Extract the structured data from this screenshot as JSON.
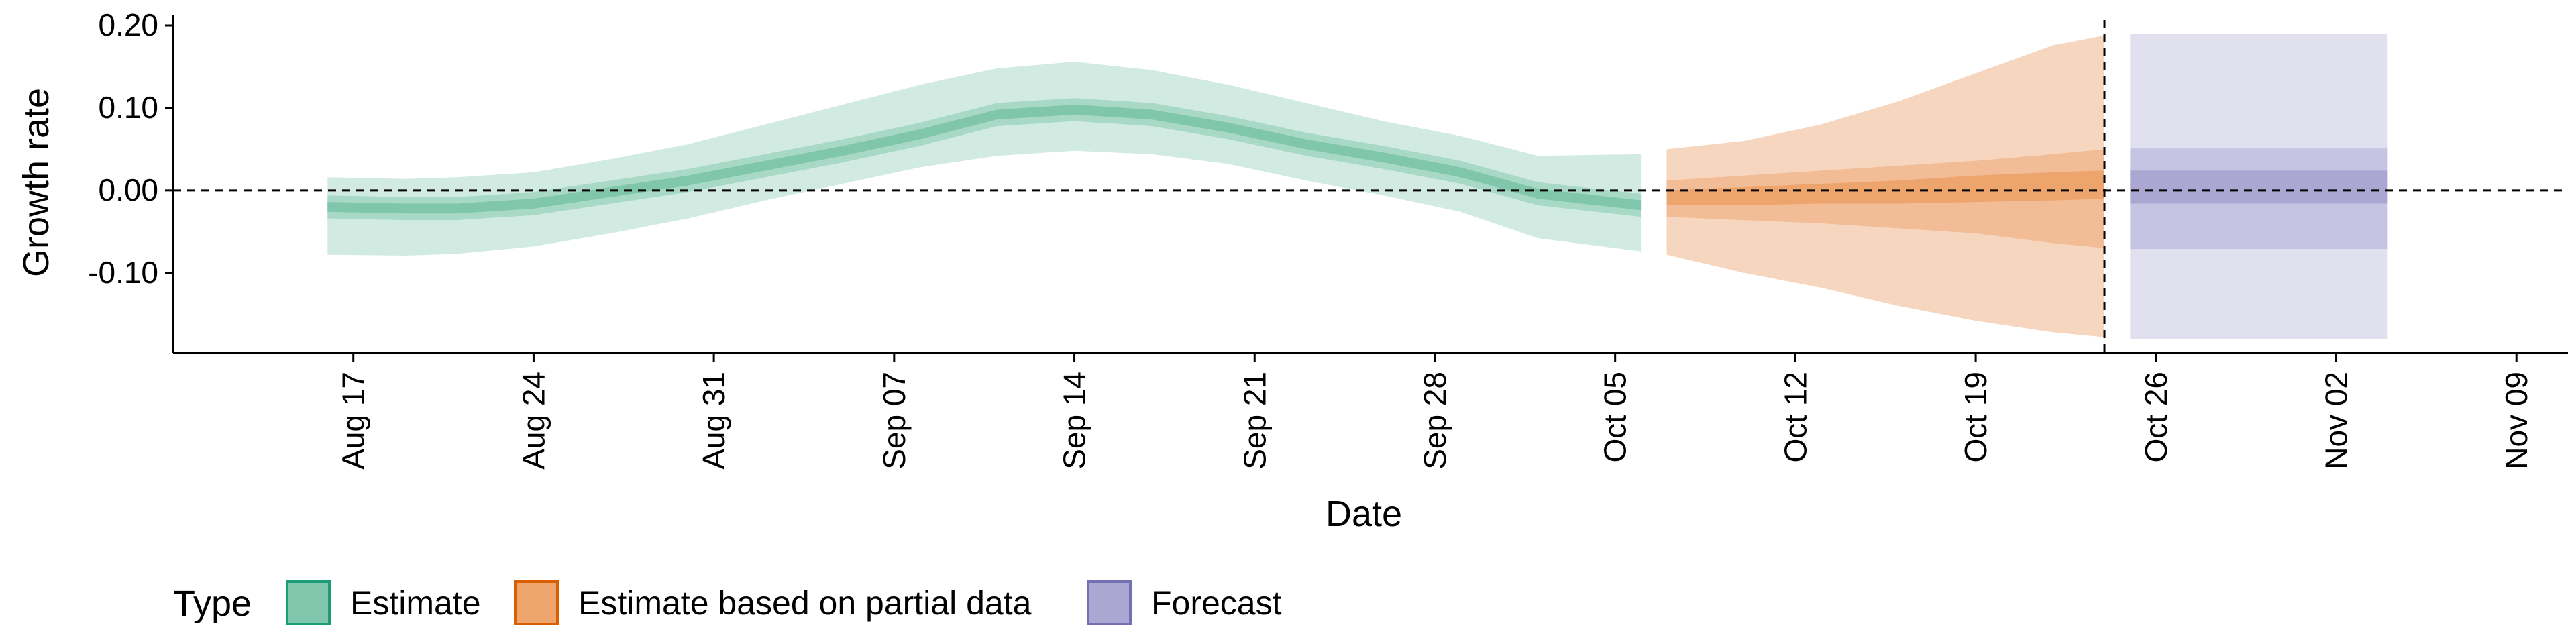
{
  "chart_data": {
    "type": "area",
    "xlabel": "Date",
    "ylabel": "Growth rate",
    "x_ticks": [
      "Aug 17",
      "Aug 24",
      "Aug 31",
      "Sep 07",
      "Sep 14",
      "Sep 21",
      "Sep 28",
      "Oct 05",
      "Oct 12",
      "Oct 19",
      "Oct 26",
      "Nov 02",
      "Nov 09"
    ],
    "y_ticks": [
      "0.20",
      "0.10",
      "0.00",
      "-0.10"
    ],
    "xlim": [
      "2020-08-10",
      "2020-11-11"
    ],
    "ylim": [
      -0.197,
      0.2
    ],
    "grid": false,
    "reference_lines": [
      {
        "axis": "y",
        "value": 0,
        "style": "dashed"
      },
      {
        "axis": "x",
        "value": "2020-10-24",
        "style": "dashed"
      }
    ],
    "legend": {
      "title": "Type",
      "position": "bottom",
      "entries": [
        {
          "label": "Estimate",
          "fill": "#7fc6ad",
          "stroke": "#1b9e77"
        },
        {
          "label": "Estimate based on partial data",
          "fill": "#eea46d",
          "stroke": "#d95f02"
        },
        {
          "label": "Forecast",
          "fill": "#aba7d2",
          "stroke": "#7570b3"
        }
      ]
    },
    "series": [
      {
        "name": "Estimate",
        "colors": {
          "outer": "#d2ebe2",
          "middle": "#a8d9c7",
          "inner": "#7fc6ad"
        },
        "points": [
          {
            "date": "2020-08-16",
            "median": -0.02,
            "lower_90": -0.078,
            "upper_90": 0.016,
            "lower_50": -0.034,
            "upper_50": -0.006,
            "lower_20": -0.026,
            "upper_20": -0.014
          },
          {
            "date": "2020-08-19",
            "median": -0.022,
            "lower_90": -0.079,
            "upper_90": 0.014,
            "lower_50": -0.036,
            "upper_50": -0.008,
            "lower_20": -0.028,
            "upper_20": -0.016
          },
          {
            "date": "2020-08-21",
            "median": -0.022,
            "lower_90": -0.077,
            "upper_90": 0.016,
            "lower_50": -0.036,
            "upper_50": -0.008,
            "lower_20": -0.028,
            "upper_20": -0.016
          },
          {
            "date": "2020-08-24",
            "median": -0.016,
            "lower_90": -0.068,
            "upper_90": 0.022,
            "lower_50": -0.03,
            "upper_50": -0.002,
            "lower_20": -0.022,
            "upper_20": -0.01
          },
          {
            "date": "2020-08-27",
            "median": -0.002,
            "lower_90": -0.052,
            "upper_90": 0.038,
            "lower_50": -0.016,
            "upper_50": 0.012,
            "lower_20": -0.008,
            "upper_20": 0.004
          },
          {
            "date": "2020-08-30",
            "median": 0.012,
            "lower_90": -0.034,
            "upper_90": 0.056,
            "lower_50": -0.002,
            "upper_50": 0.026,
            "lower_20": 0.006,
            "upper_20": 0.018
          },
          {
            "date": "2020-09-02",
            "median": 0.03,
            "lower_90": -0.012,
            "upper_90": 0.08,
            "lower_50": 0.016,
            "upper_50": 0.044,
            "lower_20": 0.024,
            "upper_20": 0.036
          },
          {
            "date": "2020-09-05",
            "median": 0.048,
            "lower_90": 0.008,
            "upper_90": 0.104,
            "lower_50": 0.034,
            "upper_50": 0.062,
            "lower_20": 0.042,
            "upper_20": 0.054
          },
          {
            "date": "2020-09-08",
            "median": 0.068,
            "lower_90": 0.028,
            "upper_90": 0.128,
            "lower_50": 0.054,
            "upper_50": 0.082,
            "lower_20": 0.062,
            "upper_20": 0.074
          },
          {
            "date": "2020-09-11",
            "median": 0.092,
            "lower_90": 0.042,
            "upper_90": 0.148,
            "lower_50": 0.078,
            "upper_50": 0.106,
            "lower_20": 0.086,
            "upper_20": 0.098
          },
          {
            "date": "2020-09-14",
            "median": 0.098,
            "lower_90": 0.048,
            "upper_90": 0.156,
            "lower_50": 0.084,
            "upper_50": 0.112,
            "lower_20": 0.092,
            "upper_20": 0.104
          },
          {
            "date": "2020-09-17",
            "median": 0.092,
            "lower_90": 0.044,
            "upper_90": 0.146,
            "lower_50": 0.078,
            "upper_50": 0.106,
            "lower_20": 0.086,
            "upper_20": 0.098
          },
          {
            "date": "2020-09-20",
            "median": 0.076,
            "lower_90": 0.032,
            "upper_90": 0.128,
            "lower_50": 0.062,
            "upper_50": 0.09,
            "lower_20": 0.07,
            "upper_20": 0.082
          },
          {
            "date": "2020-09-23",
            "median": 0.056,
            "lower_90": 0.012,
            "upper_90": 0.106,
            "lower_50": 0.042,
            "upper_50": 0.07,
            "lower_20": 0.05,
            "upper_20": 0.062
          },
          {
            "date": "2020-09-26",
            "median": 0.04,
            "lower_90": -0.006,
            "upper_90": 0.084,
            "lower_50": 0.026,
            "upper_50": 0.054,
            "lower_20": 0.034,
            "upper_20": 0.046
          },
          {
            "date": "2020-09-29",
            "median": 0.022,
            "lower_90": -0.026,
            "upper_90": 0.066,
            "lower_50": 0.008,
            "upper_50": 0.036,
            "lower_20": 0.016,
            "upper_20": 0.028
          },
          {
            "date": "2020-10-02",
            "median": -0.004,
            "lower_90": -0.058,
            "upper_90": 0.042,
            "lower_50": -0.018,
            "upper_50": 0.01,
            "lower_20": -0.01,
            "upper_20": 0.002
          },
          {
            "date": "2020-10-06",
            "median": -0.018,
            "lower_90": -0.074,
            "upper_90": 0.044,
            "lower_50": -0.032,
            "upper_50": -0.004,
            "lower_20": -0.024,
            "upper_20": -0.012
          }
        ]
      },
      {
        "name": "Estimate based on partial data",
        "colors": {
          "outer": "#f7d6c0",
          "middle": "#f2bd96",
          "inner": "#eea46d"
        },
        "points": [
          {
            "date": "2020-10-07",
            "median": -0.01,
            "lower_90": -0.078,
            "upper_90": 0.05,
            "lower_50": -0.032,
            "upper_50": 0.012,
            "lower_20": -0.018,
            "upper_20": 0.0
          },
          {
            "date": "2020-10-10",
            "median": -0.008,
            "lower_90": -0.1,
            "upper_90": 0.06,
            "lower_50": -0.036,
            "upper_50": 0.018,
            "lower_20": -0.018,
            "upper_20": 0.004
          },
          {
            "date": "2020-10-13",
            "median": -0.006,
            "lower_90": -0.118,
            "upper_90": 0.08,
            "lower_50": -0.04,
            "upper_50": 0.024,
            "lower_20": -0.016,
            "upper_20": 0.008
          },
          {
            "date": "2020-10-16",
            "median": -0.004,
            "lower_90": -0.14,
            "upper_90": 0.108,
            "lower_50": -0.046,
            "upper_50": 0.03,
            "lower_20": -0.016,
            "upper_20": 0.012
          },
          {
            "date": "2020-10-19",
            "median": 0.0,
            "lower_90": -0.158,
            "upper_90": 0.142,
            "lower_50": -0.052,
            "upper_50": 0.036,
            "lower_20": -0.014,
            "upper_20": 0.018
          },
          {
            "date": "2020-10-22",
            "median": 0.002,
            "lower_90": -0.172,
            "upper_90": 0.176,
            "lower_50": -0.064,
            "upper_50": 0.044,
            "lower_20": -0.012,
            "upper_20": 0.022
          },
          {
            "date": "2020-10-24",
            "median": 0.002,
            "lower_90": -0.178,
            "upper_90": 0.188,
            "lower_50": -0.07,
            "upper_50": 0.05,
            "lower_20": -0.01,
            "upper_20": 0.024
          }
        ]
      },
      {
        "name": "Forecast",
        "colors": {
          "outer": "#e1e0ef",
          "middle": "#c6c4e2",
          "inner": "#aba7d2"
        },
        "points": [
          {
            "date": "2020-10-25",
            "median": 0.005,
            "lower_90": -0.18,
            "upper_90": 0.19,
            "lower_50": -0.071,
            "upper_50": 0.051,
            "lower_20": -0.016,
            "upper_20": 0.024
          },
          {
            "date": "2020-11-04",
            "median": 0.005,
            "lower_90": -0.18,
            "upper_90": 0.19,
            "lower_50": -0.071,
            "upper_50": 0.051,
            "lower_20": -0.016,
            "upper_20": 0.024
          }
        ]
      }
    ]
  }
}
